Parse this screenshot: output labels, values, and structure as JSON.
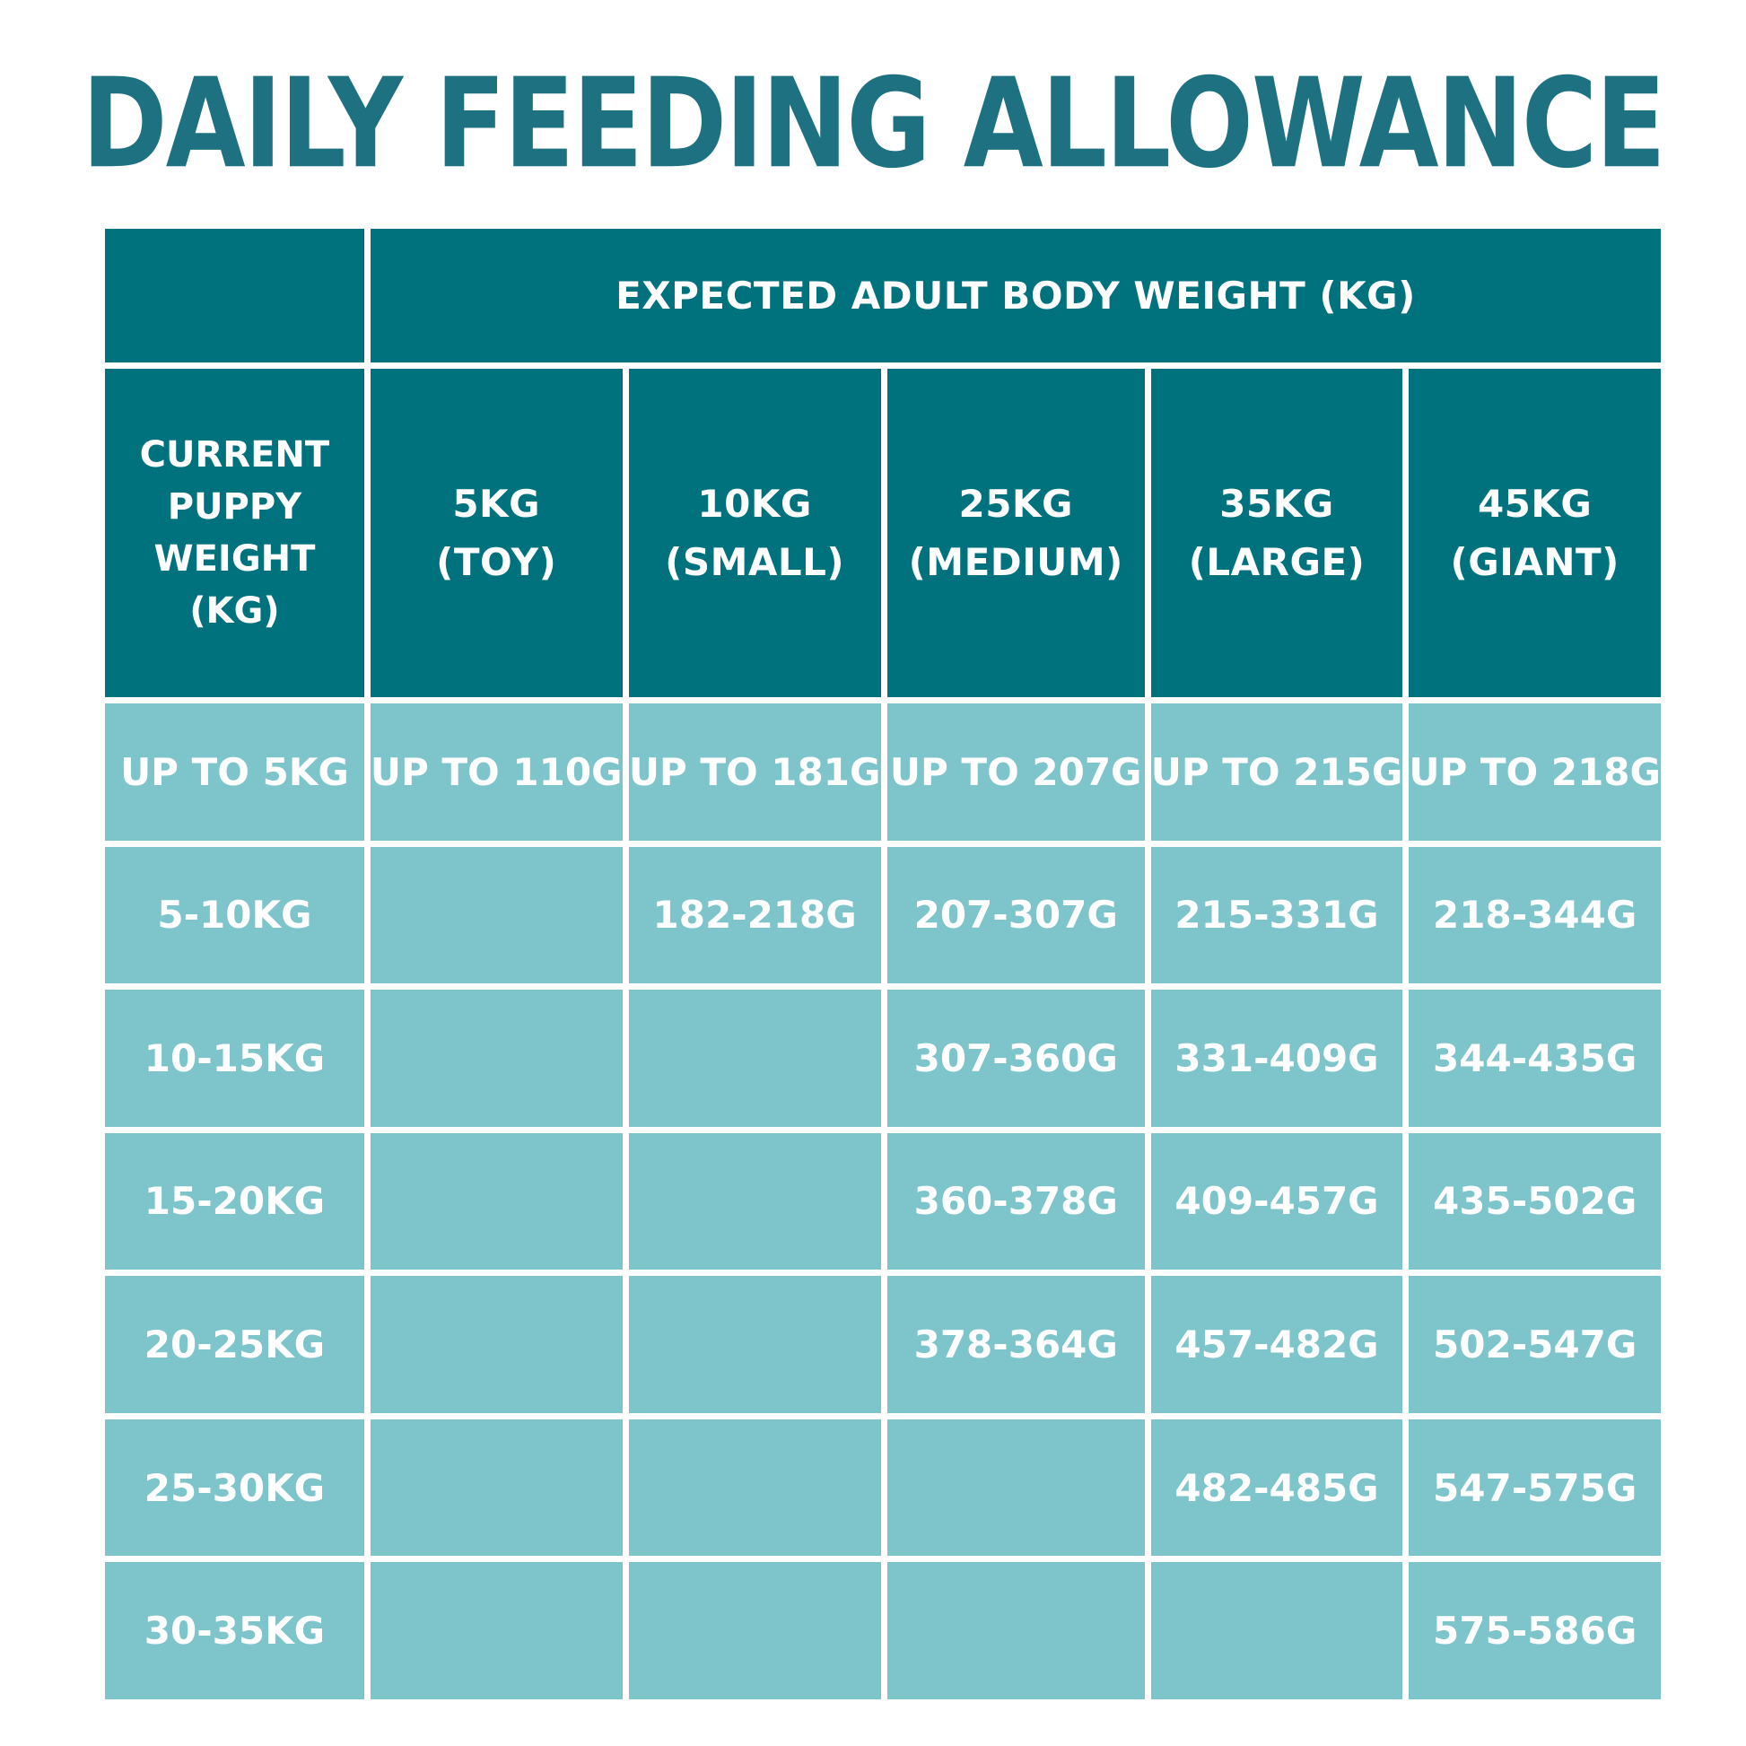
{
  "chart_data": {
    "type": "table",
    "title": "DAILY FEEDING ALLOWANCE",
    "span_header": "EXPECTED ADULT BODY WEIGHT (KG)",
    "corner_header_lines": [
      "CURRENT",
      "PUPPY",
      "WEIGHT (KG)"
    ],
    "column_headers": [
      {
        "lines": [
          "5KG",
          "(TOY)"
        ]
      },
      {
        "lines": [
          "10KG",
          "(SMALL)"
        ]
      },
      {
        "lines": [
          "25KG",
          "(MEDIUM)"
        ]
      },
      {
        "lines": [
          "35KG",
          "(LARGE)"
        ]
      },
      {
        "lines": [
          "45KG",
          "(GIANT)"
        ]
      }
    ],
    "rows": [
      {
        "label": "UP TO 5KG",
        "values": [
          "UP TO 110G",
          "UP TO 181G",
          "UP TO 207G",
          "UP TO 215G",
          "UP TO 218G"
        ]
      },
      {
        "label": "5-10KG",
        "values": [
          "",
          "182-218G",
          "207-307G",
          "215-331G",
          "218-344G"
        ]
      },
      {
        "label": "10-15KG",
        "values": [
          "",
          "",
          "307-360G",
          "331-409G",
          "344-435G"
        ]
      },
      {
        "label": "15-20KG",
        "values": [
          "",
          "",
          "360-378G",
          "409-457G",
          "435-502G"
        ]
      },
      {
        "label": "20-25KG",
        "values": [
          "",
          "",
          "378-364G",
          "457-482G",
          "502-547G"
        ]
      },
      {
        "label": "25-30KG",
        "values": [
          "",
          "",
          "",
          "482-485G",
          "547-575G"
        ]
      },
      {
        "label": "30-35KG",
        "values": [
          "",
          "",
          "",
          "",
          "575-586G"
        ]
      }
    ]
  },
  "colors": {
    "title_teal": "#1d7181",
    "header_teal": "#00727e",
    "cell_teal": "#7dc4cb",
    "text": "#ffffff",
    "background": "#ffffff"
  }
}
